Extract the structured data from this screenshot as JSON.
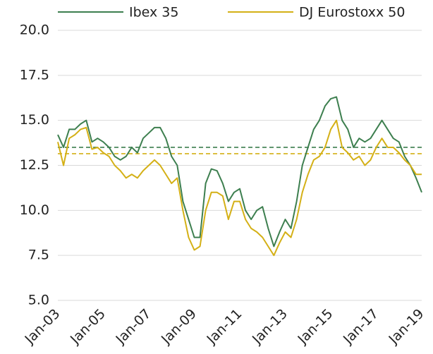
{
  "chart_data": {
    "type": "line",
    "x": [
      "Jan-03",
      "Apr-03",
      "Jul-03",
      "Oct-03",
      "Jan-04",
      "Apr-04",
      "Jul-04",
      "Oct-04",
      "Jan-05",
      "Apr-05",
      "Jul-05",
      "Oct-05",
      "Jan-06",
      "Apr-06",
      "Jul-06",
      "Oct-06",
      "Jan-07",
      "Apr-07",
      "Jul-07",
      "Oct-07",
      "Jan-08",
      "Apr-08",
      "Jul-08",
      "Oct-08",
      "Jan-09",
      "Apr-09",
      "Jul-09",
      "Oct-09",
      "Jan-10",
      "Apr-10",
      "Jul-10",
      "Oct-10",
      "Jan-11",
      "Apr-11",
      "Jul-11",
      "Oct-11",
      "Jan-12",
      "Apr-12",
      "Jul-12",
      "Oct-12",
      "Jan-13",
      "Apr-13",
      "Jul-13",
      "Oct-13",
      "Jan-14",
      "Apr-14",
      "Jul-14",
      "Oct-14",
      "Jan-15",
      "Apr-15",
      "Jul-15",
      "Oct-15",
      "Jan-16",
      "Apr-16",
      "Jul-16",
      "Oct-16",
      "Jan-17",
      "Apr-17",
      "Jul-17",
      "Oct-17",
      "Jan-18",
      "Apr-18",
      "Jul-18",
      "Oct-18",
      "Jan-19"
    ],
    "series": [
      {
        "name": "Ibex 35",
        "color": "#3d7f4f",
        "values": [
          14.2,
          13.5,
          14.5,
          14.5,
          14.8,
          15.0,
          13.8,
          14.0,
          13.8,
          13.5,
          13.0,
          12.8,
          13.0,
          13.5,
          13.2,
          14.0,
          14.3,
          14.6,
          14.6,
          14.0,
          13.0,
          12.5,
          10.5,
          9.5,
          8.5,
          8.5,
          11.5,
          12.3,
          12.2,
          11.5,
          10.5,
          11.0,
          11.2,
          10.0,
          9.5,
          10.0,
          10.2,
          9.0,
          8.0,
          8.8,
          9.5,
          9.0,
          10.5,
          12.5,
          13.5,
          14.5,
          15.0,
          15.8,
          16.2,
          16.3,
          15.0,
          14.5,
          13.5,
          14.0,
          13.8,
          14.0,
          14.5,
          15.0,
          14.5,
          14.0,
          13.8,
          13.0,
          12.5,
          11.8,
          11.0
        ]
      },
      {
        "name": "DJ Eurostoxx 50",
        "color": "#d4b016",
        "values": [
          13.8,
          12.5,
          14.0,
          14.2,
          14.5,
          14.6,
          13.4,
          13.5,
          13.2,
          13.0,
          12.5,
          12.2,
          11.8,
          12.0,
          11.8,
          12.2,
          12.5,
          12.8,
          12.5,
          12.0,
          11.5,
          11.8,
          10.0,
          8.5,
          7.8,
          8.0,
          10.0,
          11.0,
          11.0,
          10.8,
          9.5,
          10.5,
          10.5,
          9.5,
          9.0,
          8.8,
          8.5,
          8.0,
          7.5,
          8.2,
          8.8,
          8.5,
          9.5,
          11.0,
          12.0,
          12.8,
          13.0,
          13.5,
          14.5,
          15.0,
          13.5,
          13.2,
          12.8,
          13.0,
          12.5,
          12.8,
          13.5,
          14.0,
          13.5,
          13.5,
          13.2,
          12.8,
          12.5,
          12.0,
          12.0
        ]
      }
    ],
    "hlines": [
      {
        "value": 13.5,
        "color": "#3d7f4f",
        "style": "dashed"
      },
      {
        "value": 13.15,
        "color": "#d4b016",
        "style": "dashed"
      }
    ],
    "xticks": [
      "Jan-03",
      "Jan-05",
      "Jan-07",
      "Jan-09",
      "Jan-11",
      "Jan-13",
      "Jan-15",
      "Jan-17",
      "Jan-19"
    ],
    "ylim": [
      5,
      20
    ],
    "yticks": [
      {
        "value": 5,
        "label": "5.0"
      },
      7.5,
      {
        "value": 10,
        "label": "10.0"
      },
      12.5,
      {
        "value": 15,
        "label": "15.0"
      },
      17.5,
      {
        "value": 20,
        "label": "20.0"
      }
    ],
    "grid": true
  }
}
